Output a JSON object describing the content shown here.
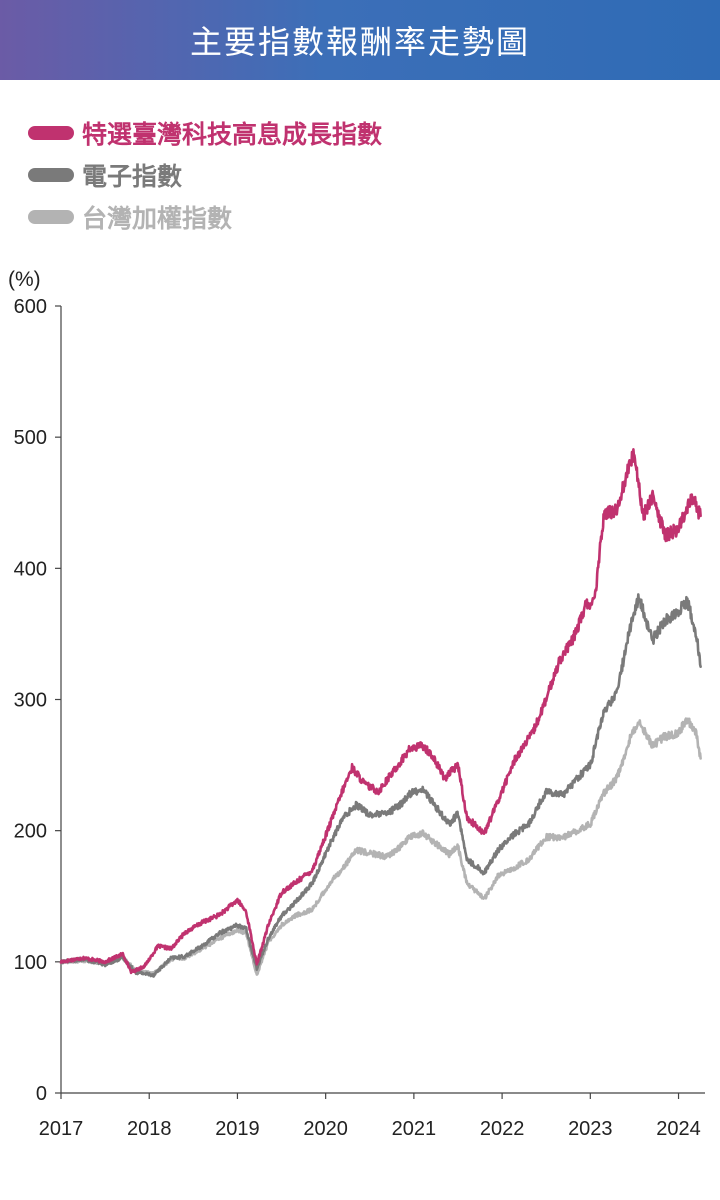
{
  "header": {
    "title": "主要指數報酬率走勢圖"
  },
  "colors": {
    "accent": "#c0326f",
    "secondary": "#7a7a7a",
    "tertiary": "#b3b3b3",
    "header": "#3c6fb8"
  },
  "chart_data": {
    "type": "line",
    "title": "主要指數報酬率走勢圖",
    "ylabel": "(%)",
    "xlabel": "",
    "ylim": [
      0,
      600
    ],
    "xlim": [
      2017,
      2024.3
    ],
    "yticks": [
      0,
      100,
      200,
      300,
      400,
      500,
      600
    ],
    "xticks": [
      "2017",
      "2018",
      "2019",
      "2020",
      "2021",
      "2022",
      "2023",
      "2024"
    ],
    "legend_position": "top-left",
    "grid": false,
    "series": [
      {
        "name": "特選臺灣科技高息成長指數",
        "color": "#c0326f",
        "x": [
          2017.0,
          2017.25,
          2017.5,
          2017.7,
          2017.8,
          2017.95,
          2018.1,
          2018.25,
          2018.4,
          2018.6,
          2018.8,
          2019.0,
          2019.1,
          2019.22,
          2019.35,
          2019.5,
          2019.65,
          2019.85,
          2020.05,
          2020.2,
          2020.3,
          2020.45,
          2020.6,
          2020.8,
          2020.95,
          2021.1,
          2021.2,
          2021.35,
          2021.5,
          2021.6,
          2021.8,
          2021.95,
          2022.15,
          2022.35,
          2022.5,
          2022.65,
          2022.8,
          2022.95,
          2023.05,
          2023.15,
          2023.3,
          2023.45,
          2023.5,
          2023.6,
          2023.7,
          2023.85,
          2024.0,
          2024.15,
          2024.25
        ],
        "values": [
          100,
          103,
          100,
          106,
          92,
          97,
          112,
          110,
          122,
          130,
          136,
          147,
          138,
          98,
          128,
          153,
          160,
          170,
          205,
          232,
          248,
          235,
          230,
          248,
          262,
          265,
          258,
          240,
          250,
          210,
          198,
          222,
          255,
          275,
          300,
          330,
          345,
          372,
          375,
          440,
          445,
          480,
          488,
          440,
          455,
          425,
          430,
          455,
          440
        ]
      },
      {
        "name": "電子指數",
        "color": "#7a7a7a",
        "x": [
          2017.0,
          2017.25,
          2017.5,
          2017.7,
          2017.85,
          2018.05,
          2018.25,
          2018.4,
          2018.6,
          2018.8,
          2019.0,
          2019.1,
          2019.22,
          2019.35,
          2019.5,
          2019.65,
          2019.85,
          2020.05,
          2020.2,
          2020.35,
          2020.5,
          2020.7,
          2020.85,
          2020.95,
          2021.1,
          2021.25,
          2021.4,
          2021.5,
          2021.6,
          2021.8,
          2021.95,
          2022.15,
          2022.3,
          2022.5,
          2022.7,
          2022.85,
          2023.0,
          2023.15,
          2023.3,
          2023.45,
          2023.55,
          2023.7,
          2023.85,
          2024.0,
          2024.1,
          2024.2,
          2024.25
        ],
        "values": [
          100,
          102,
          98,
          103,
          92,
          90,
          103,
          104,
          112,
          122,
          128,
          125,
          95,
          118,
          135,
          145,
          160,
          190,
          210,
          220,
          212,
          213,
          220,
          228,
          232,
          218,
          205,
          213,
          178,
          168,
          185,
          198,
          205,
          230,
          228,
          240,
          250,
          290,
          305,
          355,
          378,
          345,
          360,
          368,
          375,
          350,
          325
        ]
      },
      {
        "name": "台灣加權指數",
        "color": "#b3b3b3",
        "x": [
          2017.0,
          2017.25,
          2017.5,
          2017.7,
          2017.85,
          2018.05,
          2018.25,
          2018.4,
          2018.6,
          2018.8,
          2019.0,
          2019.1,
          2019.22,
          2019.35,
          2019.5,
          2019.65,
          2019.85,
          2020.05,
          2020.2,
          2020.35,
          2020.5,
          2020.7,
          2020.85,
          2020.95,
          2021.1,
          2021.25,
          2021.4,
          2021.5,
          2021.6,
          2021.8,
          2021.95,
          2022.15,
          2022.3,
          2022.5,
          2022.7,
          2022.85,
          2023.0,
          2023.15,
          2023.3,
          2023.45,
          2023.55,
          2023.7,
          2023.85,
          2024.0,
          2024.1,
          2024.2,
          2024.25
        ],
        "values": [
          100,
          101,
          99,
          104,
          93,
          91,
          102,
          103,
          110,
          118,
          124,
          122,
          90,
          115,
          128,
          135,
          140,
          160,
          172,
          185,
          183,
          180,
          188,
          195,
          198,
          190,
          182,
          188,
          160,
          148,
          165,
          172,
          178,
          195,
          195,
          200,
          205,
          228,
          240,
          270,
          285,
          265,
          272,
          275,
          285,
          275,
          255
        ]
      }
    ]
  }
}
